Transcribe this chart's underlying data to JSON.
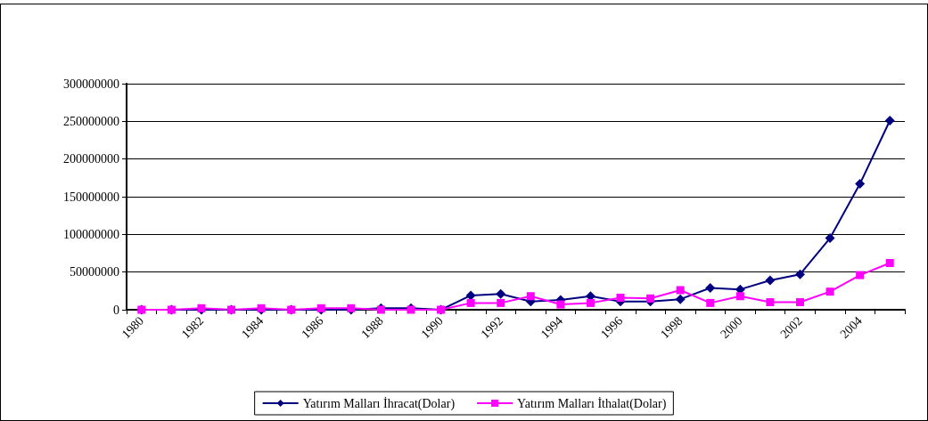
{
  "chart_data": {
    "type": "line",
    "categories": [
      "1980",
      null,
      "1982",
      null,
      "1984",
      null,
      "1986",
      null,
      "1988",
      null,
      "1990",
      null,
      "1992",
      null,
      "1994",
      null,
      "1996",
      null,
      "1998",
      null,
      "2000",
      null,
      "2002",
      null,
      "2004",
      null
    ],
    "series": [
      {
        "name": "Yatırım Malları İhracat(Dolar)",
        "color": "#000080",
        "marker": "diamond",
        "values": [
          0,
          0,
          0,
          0,
          0,
          0,
          0,
          0,
          2000000,
          2000000,
          0,
          19000000,
          21000000,
          11000000,
          13000000,
          18000000,
          11000000,
          11000000,
          14000000,
          29000000,
          27000000,
          39000000,
          47000000,
          95000000,
          167000000,
          251000000
        ]
      },
      {
        "name": "Yatırım Malları İthalat(Dolar)",
        "color": "#ff00ff",
        "marker": "square",
        "values": [
          0,
          0,
          2000000,
          0,
          2000000,
          0,
          2000000,
          2000000,
          0,
          0,
          0,
          9000000,
          9000000,
          18000000,
          7000000,
          9000000,
          16000000,
          15000000,
          26000000,
          9000000,
          18000000,
          10000000,
          10000000,
          24000000,
          46000000,
          62000000
        ]
      }
    ],
    "ylim": [
      0,
      300000000
    ],
    "yticks": [
      0,
      50000000,
      100000000,
      150000000,
      200000000,
      250000000,
      300000000
    ],
    "grid": "y",
    "legend": "bottom",
    "line_style": "solid"
  }
}
